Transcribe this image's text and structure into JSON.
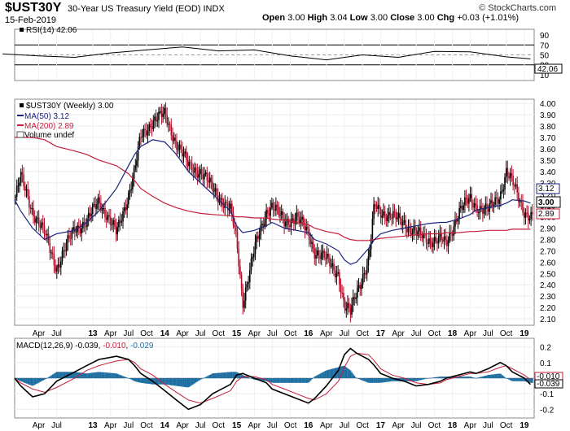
{
  "header": {
    "symbol": "$UST30Y",
    "name": "30-Year US Treasury Yield (EOD)",
    "exchange": "INDX",
    "date": "15-Feb-2019",
    "open_label": "Open",
    "open": "3.00",
    "high_label": "High",
    "high": "3.04",
    "low_label": "Low",
    "low": "3.00",
    "close_label": "Close",
    "close": "3.00",
    "chg_label": "Chg",
    "chg": "+0.03 (+1.01%)",
    "logo": "© StockCharts.com"
  },
  "colors": {
    "up": "#000000",
    "down": "#b0102a",
    "ma50": "#1a237e",
    "ma200": "#c41e3a",
    "macd": "#000000",
    "signal": "#c41e3a",
    "hist": "#1f6fa3",
    "rsi": "#000000"
  },
  "chart_data": [
    {
      "type": "line",
      "panel": "rsi",
      "legend": "RSI(14) 42.06",
      "value_label": "42.06",
      "yticks": [
        "90",
        "70",
        "50",
        "30",
        "10"
      ],
      "ylim": [
        0,
        100
      ],
      "levels": [
        70,
        30
      ],
      "x_dates": [
        "2011-10",
        "2012-04",
        "2012-10",
        "2013-04",
        "2013-10",
        "2014-04",
        "2014-10",
        "2015-04",
        "2015-10",
        "2016-04",
        "2016-10",
        "2017-04",
        "2017-10",
        "2018-04",
        "2018-10",
        "2019-02"
      ],
      "values": [
        52,
        48,
        45,
        54,
        60,
        66,
        58,
        60,
        48,
        40,
        50,
        45,
        57,
        56,
        46,
        42
      ]
    },
    {
      "type": "line",
      "panel": "price",
      "legend": [
        "$UST30Y (Weekly) 3.00",
        "MA(50) 3.12",
        "MA(200) 2.89",
        "Volume undef"
      ],
      "yticks": [
        "4.00",
        "3.90",
        "3.80",
        "3.70",
        "3.60",
        "3.50",
        "3.40",
        "3.30",
        "3.20",
        "3.10",
        "3.00",
        "2.90",
        "2.80",
        "2.70",
        "2.60",
        "2.50",
        "2.40",
        "2.30",
        "2.20",
        "2.10"
      ],
      "ylim": [
        2.05,
        4.03
      ],
      "value_labels": [
        "3.12",
        "3.00",
        "2.89"
      ],
      "x_ticks": [
        "Apr",
        "Jul",
        "13",
        "Apr",
        "Jul",
        "Oct",
        "14",
        "Apr",
        "Jul",
        "Oct",
        "15",
        "Apr",
        "Jul",
        "Oct",
        "16",
        "Apr",
        "Jul",
        "Oct",
        "17",
        "Apr",
        "Jul",
        "Oct",
        "18",
        "Apr",
        "Jul",
        "Oct",
        "19"
      ],
      "x_dates": [
        "2011-12",
        "2012-01",
        "2012-03",
        "2012-05",
        "2012-07",
        "2012-10",
        "2012-12",
        "2013-02",
        "2013-05",
        "2013-07",
        "2013-08",
        "2013-09",
        "2013-11",
        "2014-01",
        "2014-03",
        "2014-05",
        "2014-07",
        "2014-09",
        "2014-12",
        "2015-01",
        "2015-02",
        "2015-04",
        "2015-06",
        "2015-07",
        "2015-09",
        "2015-11",
        "2016-01",
        "2016-02",
        "2016-04",
        "2016-06",
        "2016-07",
        "2016-08",
        "2016-09",
        "2016-11",
        "2016-12",
        "2017-01",
        "2017-03",
        "2017-05",
        "2017-07",
        "2017-09",
        "2017-11",
        "2017-12",
        "2018-02",
        "2018-04",
        "2018-05",
        "2018-07",
        "2018-09",
        "2018-10",
        "2018-11",
        "2019-01",
        "2019-02"
      ],
      "series": [
        {
          "name": "$UST30Y (Weekly) 3.00",
          "values": [
            3.15,
            3.35,
            3.05,
            2.85,
            2.55,
            2.9,
            2.95,
            3.15,
            2.85,
            3.2,
            3.4,
            3.7,
            3.85,
            3.9,
            3.65,
            3.45,
            3.4,
            3.25,
            3.05,
            2.8,
            2.25,
            2.7,
            3.05,
            3.1,
            2.95,
            3.0,
            2.85,
            2.7,
            2.62,
            2.5,
            2.2,
            2.15,
            2.35,
            2.6,
            3.1,
            3.05,
            3.0,
            2.95,
            2.85,
            2.8,
            2.8,
            2.75,
            3.05,
            3.15,
            3.1,
            3.05,
            3.2,
            3.4,
            3.3,
            3.05,
            3.0
          ]
        },
        {
          "name": "MA(50) 3.12",
          "values": [
            3.15,
            3.05,
            2.9,
            2.8,
            2.85,
            2.88,
            2.95,
            3.05,
            3.25,
            3.45,
            3.55,
            3.62,
            3.68,
            3.66,
            3.55,
            3.4,
            3.3,
            3.2,
            3.05,
            2.92,
            2.86,
            2.88,
            2.92,
            2.95,
            2.9,
            2.88,
            2.86,
            2.8,
            2.76,
            2.7,
            2.62,
            2.58,
            2.6,
            2.72,
            2.8,
            2.85,
            2.88,
            2.9,
            2.92,
            2.94,
            2.95,
            2.95,
            2.98,
            3.02,
            3.06,
            3.08,
            3.1,
            3.12,
            3.15,
            3.14,
            3.12
          ]
        },
        {
          "name": "MA(200) 2.89",
          "values": [
            3.7,
            3.7,
            3.7,
            3.68,
            3.62,
            3.58,
            3.55,
            3.5,
            3.45,
            3.38,
            3.32,
            3.25,
            3.18,
            3.12,
            3.08,
            3.05,
            3.03,
            3.02,
            3.01,
            3.0,
            3.0,
            2.99,
            2.99,
            2.98,
            2.97,
            2.95,
            2.93,
            2.9,
            2.87,
            2.85,
            2.82,
            2.8,
            2.79,
            2.79,
            2.8,
            2.81,
            2.82,
            2.83,
            2.84,
            2.85,
            2.85,
            2.86,
            2.86,
            2.87,
            2.87,
            2.88,
            2.88,
            2.88,
            2.89,
            2.89,
            2.89
          ]
        }
      ]
    },
    {
      "type": "line",
      "panel": "macd",
      "legend_prefix": "MACD(12,26,9)",
      "legend_macd": "-0.039",
      "legend_signal": "-0.010",
      "legend_hist": "-0.029",
      "value_labels": [
        "-0.010",
        "-0.039"
      ],
      "yticks": [
        "0.2",
        "0.1",
        "0.0",
        "-0.1",
        "-0.2"
      ],
      "ylim": [
        -0.25,
        0.25
      ],
      "x_ticks": [
        "Apr",
        "Jul",
        "13",
        "Apr",
        "Jul",
        "Oct",
        "14",
        "Apr",
        "Jul",
        "Oct",
        "15",
        "Apr",
        "Jul",
        "Oct",
        "16",
        "Apr",
        "Jul",
        "Oct",
        "17",
        "Apr",
        "Jul",
        "Oct",
        "18",
        "Apr",
        "Jul",
        "Oct",
        "19"
      ],
      "x_dates": [
        "2011-12",
        "2012-01",
        "2012-03",
        "2012-05",
        "2012-07",
        "2012-10",
        "2012-12",
        "2013-02",
        "2013-05",
        "2013-07",
        "2013-08",
        "2013-09",
        "2013-11",
        "2014-01",
        "2014-03",
        "2014-05",
        "2014-07",
        "2014-09",
        "2014-12",
        "2015-01",
        "2015-02",
        "2015-04",
        "2015-06",
        "2015-07",
        "2015-09",
        "2015-11",
        "2016-01",
        "2016-02",
        "2016-04",
        "2016-06",
        "2016-07",
        "2016-08",
        "2016-09",
        "2016-11",
        "2016-12",
        "2017-01",
        "2017-03",
        "2017-05",
        "2017-07",
        "2017-09",
        "2017-11",
        "2017-12",
        "2018-02",
        "2018-04",
        "2018-05",
        "2018-07",
        "2018-09",
        "2018-10",
        "2018-11",
        "2019-01",
        "2019-02"
      ],
      "series": [
        {
          "name": "MACD",
          "values": [
            0.0,
            -0.05,
            -0.12,
            -0.1,
            -0.02,
            0.04,
            0.08,
            0.12,
            0.14,
            0.12,
            0.08,
            0.03,
            -0.02,
            -0.08,
            -0.14,
            -0.2,
            -0.17,
            -0.1,
            -0.04,
            0.02,
            0.03,
            0.0,
            -0.03,
            -0.07,
            -0.1,
            -0.13,
            -0.16,
            -0.13,
            -0.05,
            0.05,
            0.15,
            0.19,
            0.16,
            0.12,
            0.08,
            0.03,
            0.0,
            -0.02,
            -0.05,
            -0.04,
            -0.02,
            0.0,
            0.02,
            0.04,
            0.03,
            0.06,
            0.1,
            0.08,
            0.04,
            0.0,
            -0.04
          ]
        },
        {
          "name": "Signal",
          "values": [
            0.0,
            -0.03,
            -0.07,
            -0.09,
            -0.06,
            0.0,
            0.05,
            0.08,
            0.11,
            0.12,
            0.1,
            0.06,
            0.02,
            -0.04,
            -0.09,
            -0.14,
            -0.16,
            -0.13,
            -0.08,
            -0.02,
            0.01,
            0.01,
            -0.01,
            -0.04,
            -0.07,
            -0.1,
            -0.13,
            -0.14,
            -0.1,
            -0.02,
            0.07,
            0.14,
            0.16,
            0.15,
            0.11,
            0.06,
            0.02,
            0.0,
            -0.03,
            -0.04,
            -0.03,
            -0.01,
            0.01,
            0.03,
            0.03,
            0.04,
            0.07,
            0.08,
            0.06,
            0.02,
            -0.01
          ]
        }
      ]
    }
  ]
}
